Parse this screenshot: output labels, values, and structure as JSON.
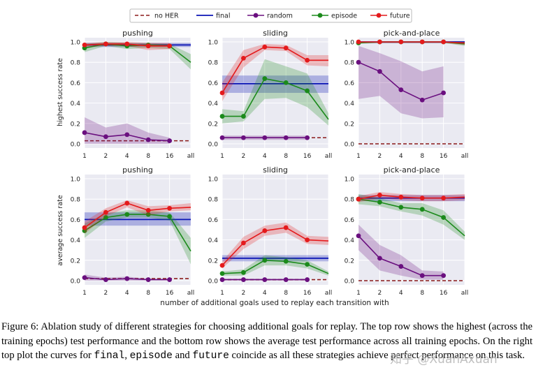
{
  "legend": {
    "entries": [
      {
        "label": "no HER",
        "style": "dashed",
        "color": "#8b1a1a"
      },
      {
        "label": "final",
        "style": "solid",
        "color": "#0b15b5"
      },
      {
        "label": "random",
        "style": "marker",
        "color": "#6a0f7f"
      },
      {
        "label": "episode",
        "style": "marker",
        "color": "#1b8a1b"
      },
      {
        "label": "future",
        "style": "marker",
        "color": "#e41a1c"
      }
    ]
  },
  "colors": {
    "nohers": "#8b1a1a",
    "final": "#0b15b5",
    "random": "#6a0f7f",
    "episode": "#1b8a1b",
    "future": "#e41a1c",
    "panel_bg": "#eaeaf2"
  },
  "x_ticks": [
    "1",
    "2",
    "4",
    "8",
    "16",
    "all"
  ],
  "y_ticks": [
    "0.0",
    "0.2",
    "0.4",
    "0.6",
    "0.8",
    "1.0"
  ],
  "ylabels": [
    "highest success rate",
    "average success rate"
  ],
  "xlabel": "number of additional goals used to replay each transition with",
  "chart_data": [
    {
      "type": "line",
      "title": "pushing",
      "ylim": [
        0,
        1
      ],
      "categories": [
        "1",
        "2",
        "4",
        "8",
        "16",
        "all"
      ],
      "nohers": 0.03,
      "final": {
        "value": 0.97,
        "band": [
          0.95,
          0.99
        ]
      },
      "series": [
        {
          "name": "random",
          "values": [
            0.11,
            0.07,
            0.09,
            0.04,
            0.03,
            null
          ],
          "lower": [
            0.0,
            0.0,
            0.0,
            0.0,
            0.0,
            null
          ],
          "upper": [
            0.26,
            0.16,
            0.2,
            0.11,
            0.06,
            null
          ]
        },
        {
          "name": "episode",
          "values": [
            0.94,
            0.98,
            0.96,
            0.97,
            0.96,
            0.8
          ],
          "lower": [
            0.9,
            0.96,
            0.93,
            0.94,
            0.93,
            0.73
          ],
          "upper": [
            0.98,
            1.0,
            0.99,
            0.99,
            0.98,
            0.88
          ]
        },
        {
          "name": "future",
          "values": [
            0.97,
            0.98,
            0.98,
            0.96,
            0.96,
            null
          ],
          "lower": [
            0.95,
            0.96,
            0.96,
            0.92,
            0.93,
            null
          ],
          "upper": [
            0.99,
            1.0,
            1.0,
            0.99,
            0.99,
            null
          ]
        }
      ]
    },
    {
      "type": "line",
      "title": "sliding",
      "ylim": [
        0,
        1
      ],
      "categories": [
        "1",
        "2",
        "4",
        "8",
        "16",
        "all"
      ],
      "nohers": 0.06,
      "final": {
        "value": 0.59,
        "band": [
          0.5,
          0.67
        ]
      },
      "series": [
        {
          "name": "random",
          "values": [
            0.06,
            0.06,
            0.06,
            0.06,
            0.06,
            null
          ],
          "lower": [
            0.04,
            0.04,
            0.04,
            0.04,
            0.04,
            null
          ],
          "upper": [
            0.08,
            0.08,
            0.08,
            0.08,
            0.08,
            null
          ]
        },
        {
          "name": "episode",
          "values": [
            0.27,
            0.27,
            0.64,
            0.6,
            0.52,
            0.24
          ],
          "lower": [
            0.2,
            0.22,
            0.44,
            0.45,
            0.36,
            0.18
          ],
          "upper": [
            0.34,
            0.32,
            0.83,
            0.76,
            0.69,
            0.3
          ]
        },
        {
          "name": "future",
          "values": [
            0.5,
            0.84,
            0.95,
            0.94,
            0.82,
            0.82
          ],
          "lower": [
            0.42,
            0.75,
            0.92,
            0.91,
            0.77,
            0.76
          ],
          "upper": [
            0.6,
            0.92,
            0.98,
            0.97,
            0.87,
            0.87
          ]
        }
      ]
    },
    {
      "type": "line",
      "title": "pick-and-place",
      "ylim": [
        0,
        1
      ],
      "categories": [
        "1",
        "2",
        "4",
        "8",
        "16",
        "all"
      ],
      "nohers": 0.0,
      "final": {
        "value": 1.0,
        "band": [
          0.99,
          1.0
        ]
      },
      "series": [
        {
          "name": "random",
          "values": [
            0.8,
            0.71,
            0.53,
            0.43,
            0.5,
            null
          ],
          "lower": [
            0.44,
            0.47,
            0.3,
            0.25,
            0.26,
            null
          ],
          "upper": [
            0.96,
            0.89,
            0.81,
            0.71,
            0.76,
            null
          ]
        },
        {
          "name": "episode",
          "values": [
            0.99,
            1.0,
            1.0,
            1.0,
            1.0,
            0.98
          ],
          "lower": [
            0.98,
            0.99,
            0.99,
            0.99,
            0.99,
            0.96
          ],
          "upper": [
            1.0,
            1.0,
            1.0,
            1.0,
            1.0,
            1.0
          ]
        },
        {
          "name": "future",
          "values": [
            1.0,
            1.0,
            1.0,
            1.0,
            1.0,
            0.99
          ],
          "lower": [
            0.99,
            0.99,
            0.99,
            0.99,
            0.99,
            0.97
          ],
          "upper": [
            1.0,
            1.0,
            1.0,
            1.0,
            1.0,
            1.0
          ]
        }
      ]
    },
    {
      "type": "line",
      "title": "pushing",
      "ylim": [
        0,
        1
      ],
      "categories": [
        "1",
        "2",
        "4",
        "8",
        "16",
        "all"
      ],
      "nohers": 0.02,
      "final": {
        "value": 0.6,
        "band": [
          0.54,
          0.67
        ]
      },
      "series": [
        {
          "name": "random",
          "values": [
            0.03,
            0.01,
            0.02,
            0.01,
            0.01,
            null
          ],
          "lower": [
            0.0,
            0.0,
            0.0,
            0.0,
            0.0,
            null
          ],
          "upper": [
            0.06,
            0.03,
            0.04,
            0.02,
            0.02,
            null
          ]
        },
        {
          "name": "episode",
          "values": [
            0.49,
            0.62,
            0.65,
            0.65,
            0.63,
            0.29
          ],
          "lower": [
            0.42,
            0.58,
            0.62,
            0.62,
            0.59,
            0.16
          ],
          "upper": [
            0.56,
            0.66,
            0.69,
            0.69,
            0.67,
            0.42
          ]
        },
        {
          "name": "future",
          "values": [
            0.52,
            0.67,
            0.76,
            0.69,
            0.71,
            0.72
          ],
          "lower": [
            0.46,
            0.63,
            0.72,
            0.64,
            0.68,
            0.69
          ],
          "upper": [
            0.58,
            0.71,
            0.79,
            0.73,
            0.74,
            0.76
          ]
        }
      ]
    },
    {
      "type": "line",
      "title": "sliding",
      "ylim": [
        0,
        1
      ],
      "categories": [
        "1",
        "2",
        "4",
        "8",
        "16",
        "all"
      ],
      "nohers": 0.01,
      "final": {
        "value": 0.22,
        "band": [
          0.19,
          0.25
        ]
      },
      "series": [
        {
          "name": "random",
          "values": [
            0.01,
            0.01,
            0.01,
            0.01,
            0.01,
            null
          ],
          "lower": [
            0.0,
            0.0,
            0.0,
            0.0,
            0.0,
            null
          ],
          "upper": [
            0.02,
            0.02,
            0.02,
            0.02,
            0.02,
            null
          ]
        },
        {
          "name": "episode",
          "values": [
            0.07,
            0.08,
            0.2,
            0.19,
            0.16,
            0.07
          ],
          "lower": [
            0.05,
            0.05,
            0.15,
            0.15,
            0.12,
            0.05
          ],
          "upper": [
            0.09,
            0.11,
            0.25,
            0.23,
            0.2,
            0.09
          ]
        },
        {
          "name": "future",
          "values": [
            0.15,
            0.37,
            0.49,
            0.52,
            0.4,
            0.39
          ],
          "lower": [
            0.12,
            0.31,
            0.44,
            0.47,
            0.36,
            0.35
          ],
          "upper": [
            0.19,
            0.43,
            0.54,
            0.57,
            0.44,
            0.43
          ]
        }
      ]
    },
    {
      "type": "line",
      "title": "pick-and-place",
      "ylim": [
        0,
        1
      ],
      "categories": [
        "1",
        "2",
        "4",
        "8",
        "16",
        "all"
      ],
      "nohers": 0.0,
      "final": {
        "value": 0.81,
        "band": [
          0.78,
          0.84
        ]
      },
      "series": [
        {
          "name": "random",
          "values": [
            0.44,
            0.22,
            0.14,
            0.05,
            0.05,
            null
          ],
          "lower": [
            0.3,
            0.1,
            0.05,
            0.01,
            0.01,
            null
          ],
          "upper": [
            0.55,
            0.35,
            0.25,
            0.1,
            0.09,
            null
          ]
        },
        {
          "name": "episode",
          "values": [
            0.8,
            0.77,
            0.72,
            0.7,
            0.62,
            0.44
          ],
          "lower": [
            0.75,
            0.73,
            0.68,
            0.64,
            0.55,
            0.4
          ],
          "upper": [
            0.85,
            0.81,
            0.76,
            0.76,
            0.69,
            0.48
          ]
        },
        {
          "name": "future",
          "values": [
            0.8,
            0.84,
            0.82,
            0.81,
            0.81,
            0.82
          ],
          "lower": [
            0.77,
            0.81,
            0.79,
            0.78,
            0.78,
            0.79
          ],
          "upper": [
            0.83,
            0.87,
            0.85,
            0.84,
            0.84,
            0.85
          ]
        }
      ]
    }
  ],
  "caption": {
    "p1": "Figure 6: Ablation study of different strategies for choosing additional goals for replay. The top row shows the highest (across the training epochs) test performance and the bottom row shows the average test performance across all training epochs. On the right top plot the curves for ",
    "c1": "final",
    "p2": ", ",
    "c2": "episode",
    "p3": " and ",
    "c3": "future",
    "p4": " coincide as all these strategies achieve perfect performance on this task."
  },
  "watermark": "知乎 @XuanAxuan"
}
